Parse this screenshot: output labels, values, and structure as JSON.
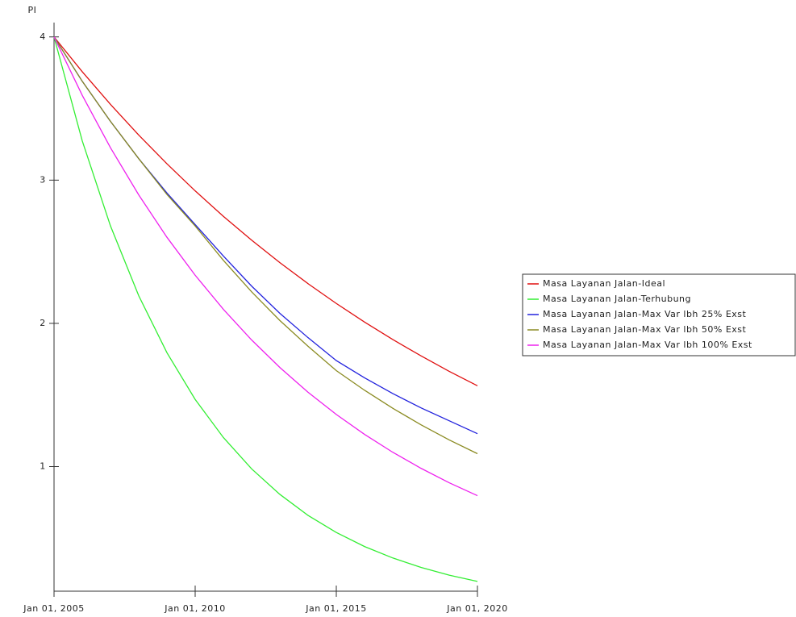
{
  "chart_data": {
    "type": "line",
    "y_label": "PI",
    "x": [
      2005,
      2006,
      2007,
      2008,
      2009,
      2010,
      2011,
      2012,
      2013,
      2014,
      2015,
      2016,
      2017,
      2018,
      2019,
      2020
    ],
    "xlim": [
      2005,
      2020
    ],
    "xticks": [
      {
        "value": 2005,
        "label": "Jan 01, 2005"
      },
      {
        "value": 2010,
        "label": "Jan 01, 2010"
      },
      {
        "value": 2015,
        "label": "Jan 01, 2015"
      },
      {
        "value": 2020,
        "label": "Jan 01, 2020"
      }
    ],
    "ylim": [
      0.13,
      4.1
    ],
    "yticks": [
      1,
      2,
      3,
      4
    ],
    "grid": false,
    "legend": "right",
    "series": [
      {
        "name": "Masa Layanan Jalan-Ideal",
        "color": "#e01010",
        "values": [
          4,
          3.757,
          3.529,
          3.315,
          3.114,
          2.925,
          2.747,
          2.581,
          2.424,
          2.277,
          2.139,
          2.009,
          1.887,
          1.773,
          1.665,
          1.564
        ]
      },
      {
        "name": "Masa Layanan Jalan-Terhubung",
        "color": "#33ee33",
        "values": [
          4,
          3.274,
          2.68,
          2.193,
          1.795,
          1.469,
          1.203,
          0.984,
          0.806,
          0.659,
          0.54,
          0.442,
          0.362,
          0.296,
          0.242,
          0.198
        ]
      },
      {
        "name": "Masa Layanan Jalan-Max Var lbh 25% Exst",
        "color": "#2222dd",
        "values": [
          4,
          3.69,
          3.41,
          3.15,
          2.91,
          2.69,
          2.47,
          2.26,
          2.07,
          1.9,
          1.74,
          1.62,
          1.51,
          1.41,
          1.32,
          1.23
        ]
      },
      {
        "name": "Masa Layanan Jalan-Max Var lbh 50% Exst",
        "color": "#8b8b22",
        "values": [
          4,
          3.69,
          3.41,
          3.15,
          2.9,
          2.68,
          2.44,
          2.22,
          2.02,
          1.84,
          1.67,
          1.533,
          1.407,
          1.292,
          1.186,
          1.09
        ]
      },
      {
        "name": "Masa Layanan Jalan-Max Var lbh 100% Exst",
        "color": "#ee22ee",
        "values": [
          4,
          3.592,
          3.226,
          2.897,
          2.601,
          2.336,
          2.098,
          1.884,
          1.692,
          1.519,
          1.364,
          1.225,
          1.1,
          0.988,
          0.887,
          0.797
        ]
      }
    ]
  }
}
